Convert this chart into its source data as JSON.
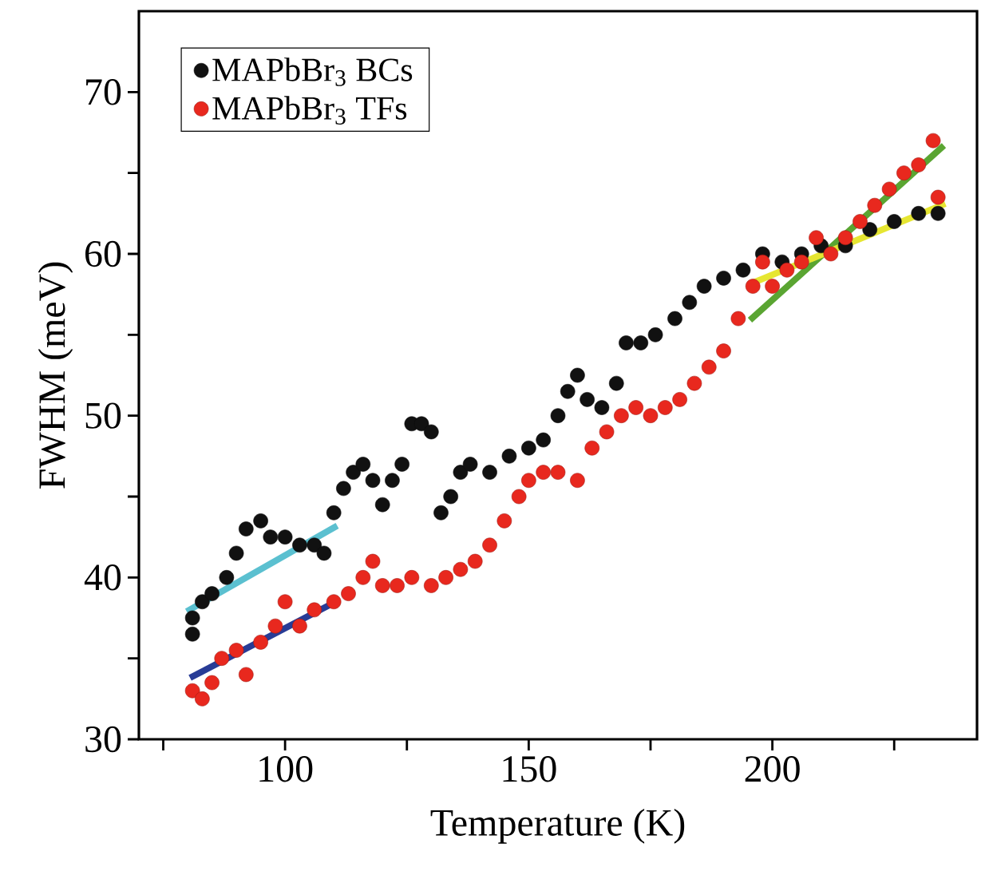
{
  "chart_data": {
    "type": "scatter",
    "xlabel": "Temperature (K)",
    "ylabel": "FWHM (meV)",
    "xlim": [
      70,
      242
    ],
    "ylim": [
      30,
      75
    ],
    "xticks": [
      {
        "value": 75,
        "label": null
      },
      100,
      {
        "value": 125,
        "label": null
      },
      150,
      {
        "value": 175,
        "label": null
      },
      200,
      {
        "value": 225,
        "label": null
      }
    ],
    "yticks": [
      30,
      {
        "value": 35,
        "label": null
      },
      40,
      {
        "value": 45,
        "label": null
      },
      50,
      {
        "value": 55,
        "label": null
      },
      60,
      {
        "value": 65,
        "label": null
      },
      70
    ],
    "legend": "top left",
    "grid": false,
    "series": [
      {
        "name": "MAPbBr$_{3}$ BCs",
        "marker": "circle",
        "color": "#111111",
        "x": [
          81,
          81,
          83,
          85,
          88,
          90,
          92,
          95,
          97,
          100,
          103,
          106,
          108,
          110,
          112,
          114,
          116,
          118,
          120,
          122,
          124,
          126,
          128,
          130,
          132,
          134,
          136,
          138,
          142,
          146,
          150,
          153,
          156,
          158,
          160,
          162,
          165,
          168,
          170,
          173,
          176,
          180,
          183,
          186,
          190,
          194,
          198,
          202,
          206,
          210,
          215,
          220,
          225,
          230,
          234
        ],
        "values": [
          37.5,
          36.5,
          38.5,
          39,
          40,
          41.5,
          43,
          43.5,
          42.5,
          42.5,
          42,
          42,
          41.5,
          44,
          45.5,
          46.5,
          47,
          46,
          44.5,
          46,
          47,
          49.5,
          49.5,
          49,
          44,
          45,
          46.5,
          47,
          46.5,
          47.5,
          48,
          48.5,
          50,
          51.5,
          52.5,
          51,
          50.5,
          52,
          54.5,
          54.5,
          55,
          56,
          57,
          58,
          58.5,
          59,
          60,
          59.5,
          60,
          60.5,
          60.5,
          61.5,
          62,
          62.5,
          62.5
        ]
      },
      {
        "name": "MAPbBr$_{3}$ TFs",
        "marker": "circle",
        "color": "#e8281e",
        "x": [
          81,
          83,
          85,
          87,
          90,
          92,
          95,
          98,
          100,
          103,
          106,
          110,
          113,
          116,
          118,
          120,
          123,
          126,
          130,
          133,
          136,
          139,
          142,
          145,
          148,
          150,
          153,
          156,
          160,
          163,
          166,
          169,
          172,
          175,
          178,
          181,
          184,
          187,
          190,
          193,
          196,
          198,
          200,
          203,
          206,
          209,
          212,
          215,
          218,
          221,
          224,
          227,
          230,
          233,
          234
        ],
        "values": [
          33,
          32.5,
          33.5,
          35,
          35.5,
          34,
          36,
          37,
          38.5,
          37,
          38,
          38.5,
          39,
          40,
          41,
          39.5,
          39.5,
          40,
          39.5,
          40,
          40.5,
          41,
          42,
          43.5,
          45,
          46,
          46.5,
          46.5,
          46,
          48,
          49,
          50,
          50.5,
          50,
          50.5,
          51,
          52,
          53,
          54,
          56,
          58,
          59.5,
          58,
          59,
          59.5,
          61,
          60,
          61,
          62,
          63,
          64,
          65,
          65.5,
          67,
          63.5
        ]
      },
      {
        "type": "line",
        "marker": "none",
        "color": "#5bc0d0",
        "x": [
          79.8,
          110.7
        ],
        "values": [
          37.9,
          43.2
        ]
      },
      {
        "type": "line",
        "marker": "none",
        "color": "#283c96",
        "x": [
          80.5,
          110.4
        ],
        "values": [
          33.8,
          38.5
        ]
      },
      {
        "type": "line",
        "marker": "none",
        "color": "#5aa532",
        "x": [
          195.4,
          235.2
        ],
        "values": [
          55.9,
          66.7
        ]
      },
      {
        "type": "line",
        "marker": "none",
        "color": "#e6e632",
        "x": [
          195.1,
          235.5
        ],
        "values": [
          58.1,
          63.1
        ]
      }
    ]
  }
}
